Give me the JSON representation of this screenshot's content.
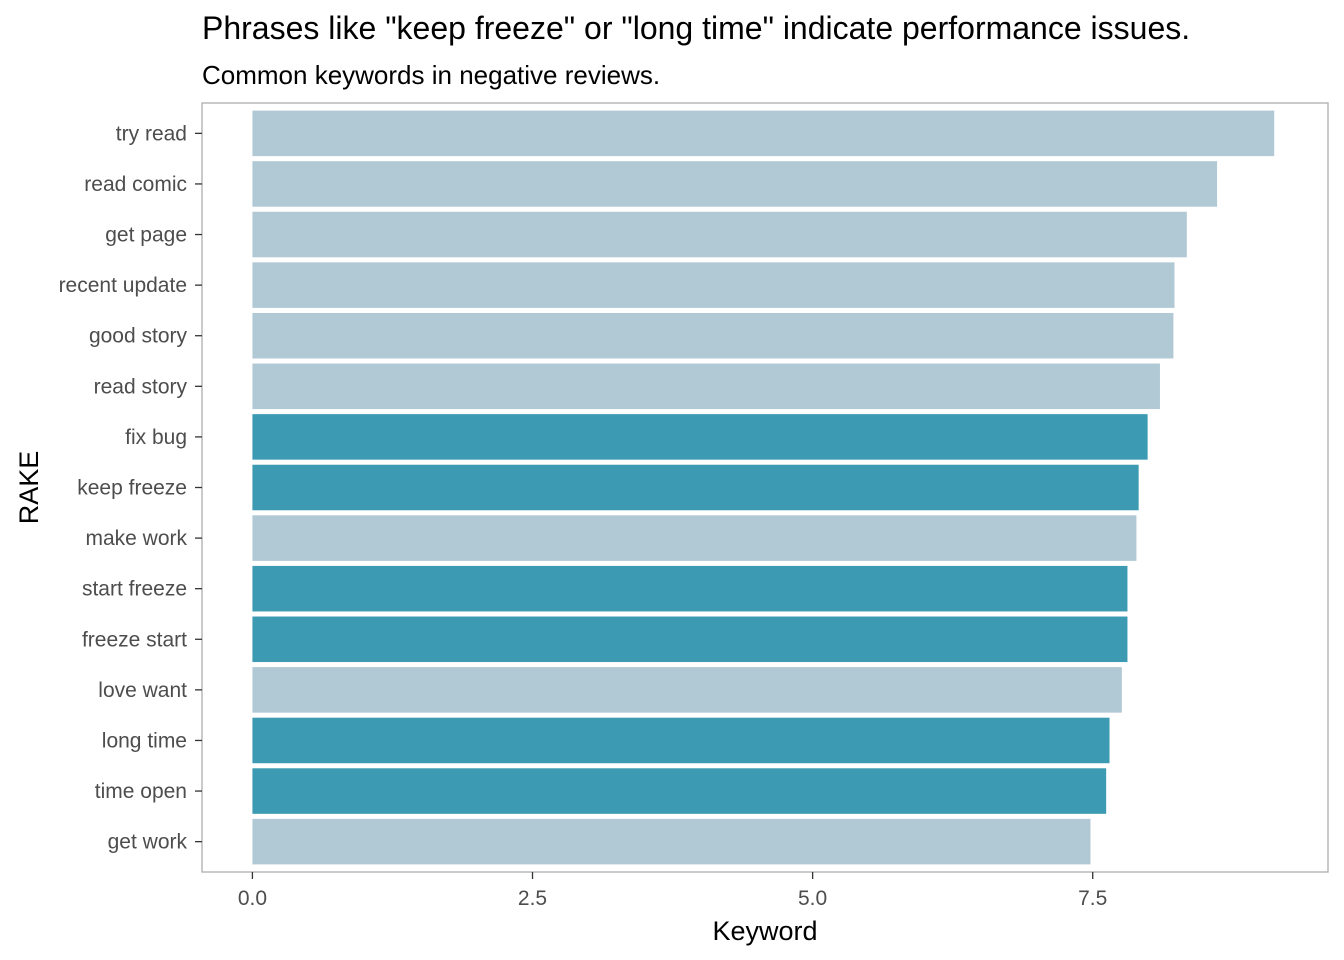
{
  "chart_data": {
    "type": "bar",
    "orientation": "horizontal",
    "title": "Phrases like \"keep freeze\" or \"long time\" indicate performance issues.",
    "subtitle": "Common keywords in negative reviews.",
    "xlabel": "Keyword",
    "ylabel": "RAKE",
    "xlim": [
      -0.45,
      9.6
    ],
    "x_ticks": [
      0,
      2.5,
      5,
      7.5
    ],
    "x_tick_labels": [
      "0.0",
      "2.5",
      "5.0",
      "7.5"
    ],
    "grid": false,
    "legend": "none",
    "colors": {
      "highlight": "#3c9ab2",
      "default": "#b0c9d4",
      "panel_border": "#b3b3b3",
      "tick": "#333333"
    },
    "categories": [
      "try read",
      "read comic",
      "get page",
      "recent update",
      "good story",
      "read story",
      "fix bug",
      "keep freeze",
      "make work",
      "start freeze",
      "freeze start",
      "love want",
      "long time",
      "time open",
      "get work"
    ],
    "values": [
      9.12,
      8.61,
      8.34,
      8.23,
      8.22,
      8.1,
      7.99,
      7.91,
      7.89,
      7.81,
      7.81,
      7.76,
      7.65,
      7.62,
      7.48
    ],
    "highlighted": [
      false,
      false,
      false,
      false,
      false,
      false,
      true,
      true,
      false,
      true,
      true,
      false,
      true,
      true,
      false
    ]
  }
}
